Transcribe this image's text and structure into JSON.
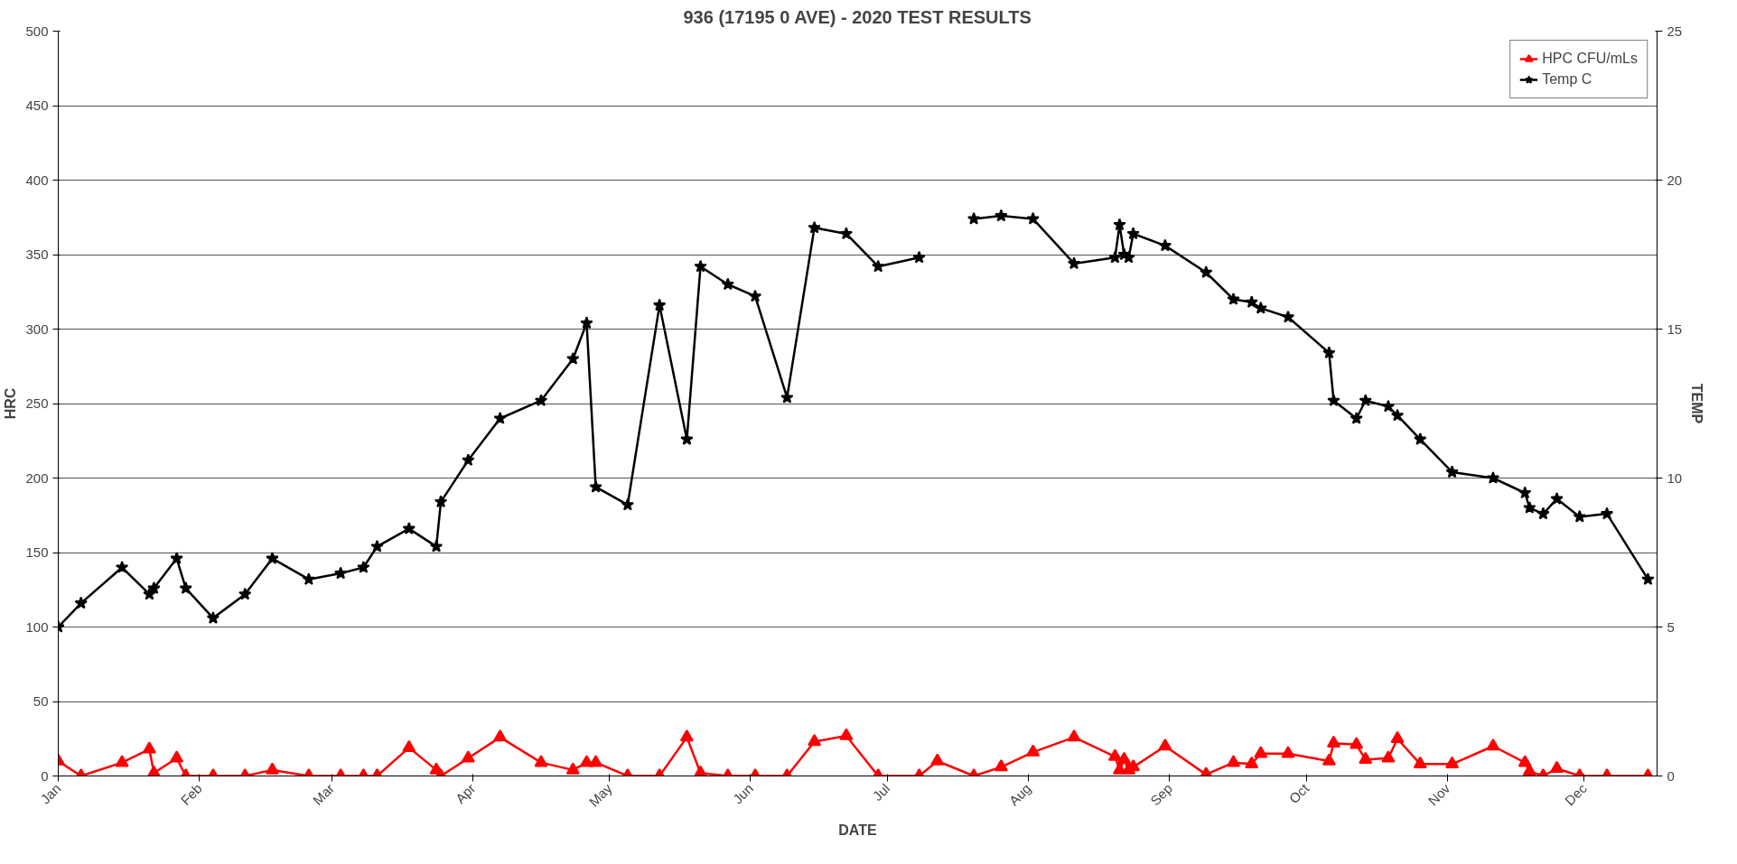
{
  "chart_data": {
    "type": "line",
    "title": "936 (17195 0 AVE) - 2020 TEST RESULTS",
    "xlabel": "DATE",
    "ylabel": "HRC",
    "y2label": "TEMP",
    "x": [
      "2020-01-01",
      "2020-01-06",
      "2020-01-15",
      "2020-01-21",
      "2020-01-22",
      "2020-01-27",
      "2020-01-29",
      "2020-02-04",
      "2020-02-11",
      "2020-02-17",
      "2020-02-25",
      "2020-03-03",
      "2020-03-08",
      "2020-03-11",
      "2020-03-18",
      "2020-03-24",
      "2020-03-25",
      "2020-03-31",
      "2020-04-07",
      "2020-04-16",
      "2020-04-23",
      "2020-04-26",
      "2020-04-28",
      "2020-05-05",
      "2020-05-12",
      "2020-05-18",
      "2020-05-21",
      "2020-05-27",
      "2020-06-02",
      "2020-06-09",
      "2020-06-15",
      "2020-06-22",
      "2020-06-29",
      "2020-07-08",
      "2020-07-12",
      "2020-07-20",
      "2020-07-26",
      "2020-08-02",
      "2020-08-11",
      "2020-08-20",
      "2020-08-21",
      "2020-08-22",
      "2020-08-23",
      "2020-08-24",
      "2020-08-31",
      "2020-09-09",
      "2020-09-15",
      "2020-09-19",
      "2020-09-21",
      "2020-09-27",
      "2020-10-06",
      "2020-10-07",
      "2020-10-12",
      "2020-10-14",
      "2020-10-19",
      "2020-10-21",
      "2020-10-26",
      "2020-11-02",
      "2020-11-11",
      "2020-11-18",
      "2020-11-19",
      "2020-11-22",
      "2020-11-25",
      "2020-11-30",
      "2020-12-06",
      "2020-12-15"
    ],
    "series": [
      {
        "name": "HPC CFU/mLs",
        "color": "#ff0000",
        "marker": "triangle",
        "values": [
          10,
          0,
          9,
          18,
          2,
          12,
          0,
          0,
          0,
          4,
          0,
          0,
          0,
          0,
          19,
          4,
          0,
          12,
          26,
          9,
          4,
          9,
          9,
          0,
          0,
          26,
          2,
          0,
          0,
          0,
          23,
          27,
          0,
          0,
          10,
          0,
          6,
          16,
          26,
          13,
          4,
          11,
          4,
          6,
          20,
          1,
          9,
          8,
          15,
          15,
          10,
          22,
          21,
          11,
          12,
          25,
          8,
          8,
          20,
          9,
          3,
          0,
          5,
          0,
          0,
          0
        ]
      },
      {
        "name": "Temp C",
        "color": "#000000",
        "marker": "star",
        "axis": "y2",
        "values": [
          5.0,
          5.8,
          7.0,
          6.1,
          6.3,
          7.3,
          6.3,
          5.3,
          6.1,
          7.3,
          6.6,
          6.8,
          7.0,
          7.7,
          8.3,
          7.7,
          9.2,
          10.6,
          12.0,
          12.6,
          14.0,
          15.2,
          9.7,
          9.1,
          15.8,
          11.3,
          17.1,
          16.5,
          16.1,
          12.7,
          18.4,
          18.2,
          17.1,
          17.4,
          null,
          18.7,
          18.8,
          18.7,
          17.2,
          17.4,
          18.5,
          17.5,
          17.4,
          18.2,
          17.8,
          16.9,
          16.0,
          15.9,
          15.7,
          15.4,
          14.2,
          12.6,
          12.0,
          12.6,
          12.4,
          12.1,
          11.3,
          10.2,
          10.0,
          9.5,
          9.0,
          8.8,
          9.3,
          8.7,
          8.8,
          6.6
        ]
      }
    ],
    "xlim": [
      "2020-01-01",
      "2020-12-17"
    ],
    "xticks": [
      {
        "value": "2020-01-01",
        "label": "Jan"
      },
      {
        "value": "2020-02-01",
        "label": "Feb"
      },
      {
        "value": "2020-03-01",
        "label": "Mar"
      },
      {
        "value": "2020-04-01",
        "label": "Apr"
      },
      {
        "value": "2020-05-01",
        "label": "May"
      },
      {
        "value": "2020-06-01",
        "label": "Jun"
      },
      {
        "value": "2020-07-01",
        "label": "Jul"
      },
      {
        "value": "2020-08-01",
        "label": "Aug"
      },
      {
        "value": "2020-09-01",
        "label": "Sep"
      },
      {
        "value": "2020-10-01",
        "label": "Oct"
      },
      {
        "value": "2020-11-01",
        "label": "Nov"
      },
      {
        "value": "2020-12-01",
        "label": "Dec"
      }
    ],
    "ylim": [
      0,
      500
    ],
    "yticks": [
      0,
      50,
      100,
      150,
      200,
      250,
      300,
      350,
      400,
      450,
      500
    ],
    "y2lim": [
      0,
      25
    ],
    "y2ticks": [
      0,
      5,
      10,
      15,
      20,
      25
    ],
    "grid": "y",
    "legend": "top right",
    "line_style": "solid"
  }
}
